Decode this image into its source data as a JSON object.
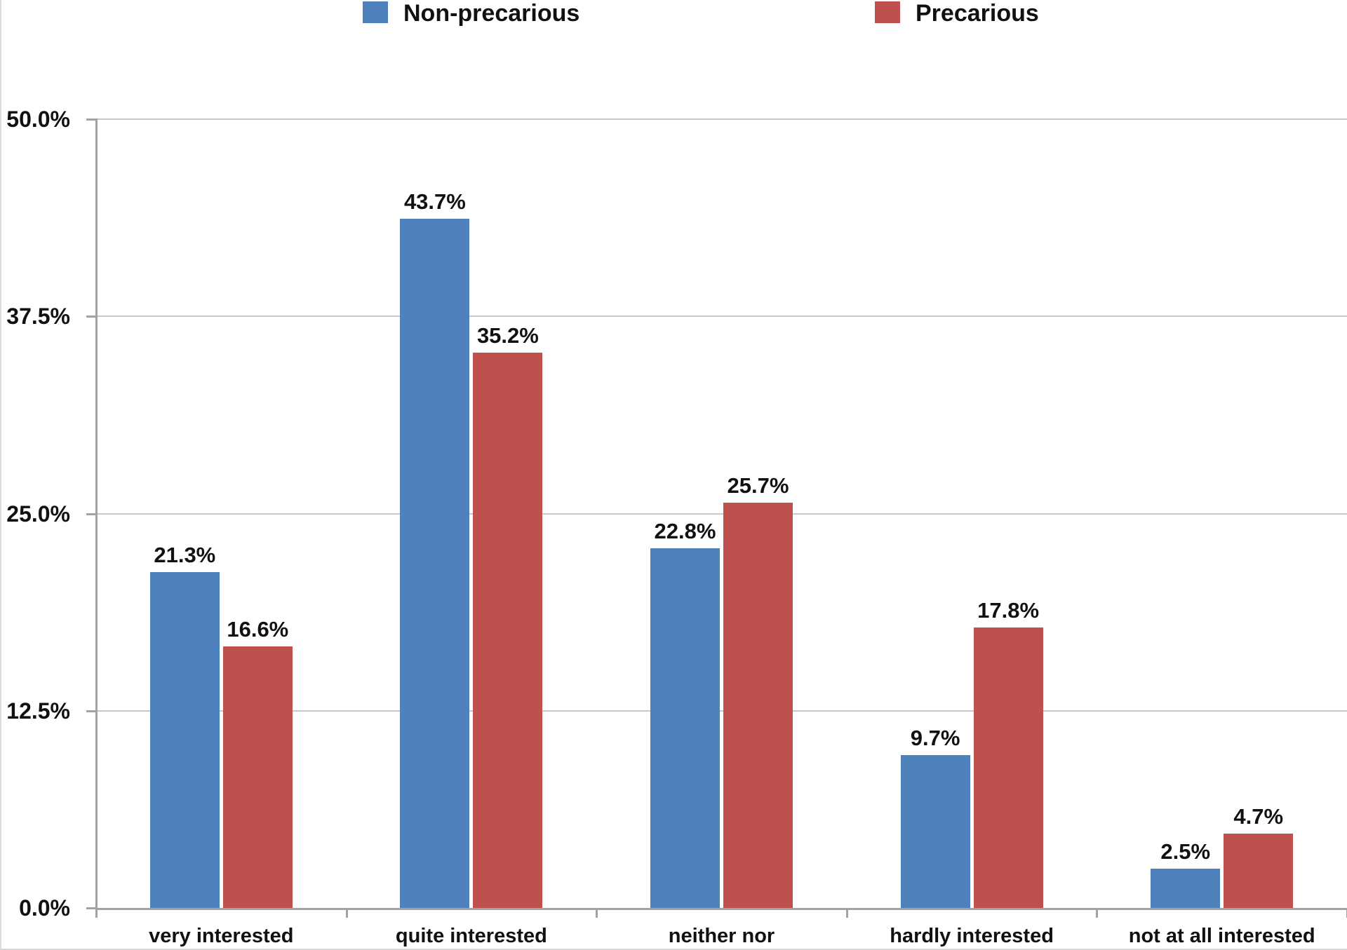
{
  "chart_data": {
    "type": "bar",
    "title": "",
    "xlabel": "",
    "ylabel": "",
    "categories": [
      "very interested",
      "quite interested",
      "neither nor",
      "hardly interested",
      "not at all interested"
    ],
    "series": [
      {
        "name": "Non-precarious",
        "color": "#4F81BD",
        "values": [
          21.3,
          43.7,
          22.8,
          9.7,
          2.5
        ],
        "data_labels": [
          "21.3%",
          "43.7%",
          "22.8%",
          "9.7%",
          "2.5%"
        ]
      },
      {
        "name": "Precarious",
        "color": "#C0504D",
        "values": [
          16.6,
          35.2,
          25.7,
          17.8,
          4.7
        ],
        "data_labels": [
          "16.6%",
          "35.2%",
          "25.7%",
          "17.8%",
          "4.7%"
        ]
      }
    ],
    "ylim": [
      0,
      50
    ],
    "y_ticks": [
      {
        "label": "50.0%",
        "value": 50
      },
      {
        "label": "37.5%",
        "value": 37.5
      },
      {
        "label": "25.0%",
        "value": 25
      },
      {
        "label": "12.5%",
        "value": 12.5
      },
      {
        "label": "0.0%",
        "value": 0
      }
    ],
    "grid": "horizontal",
    "legend_position": "top"
  },
  "colors": {
    "axis": "#a2a2a2",
    "gridline": "#c8c8c8",
    "text": "#111111",
    "background": "#ffffff"
  }
}
